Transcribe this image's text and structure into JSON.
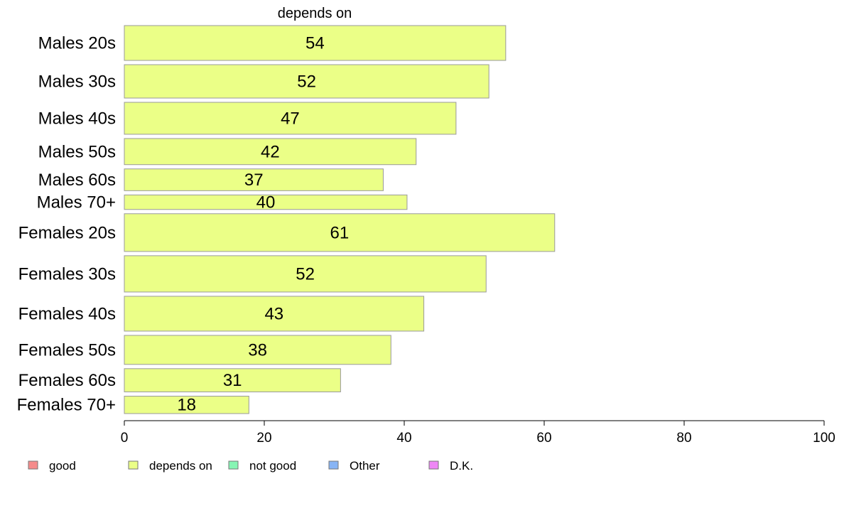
{
  "chart_data": {
    "type": "bar",
    "orientation": "horizontal",
    "title": "depends on",
    "xlabel": "",
    "ylabel": "",
    "xlim": [
      0,
      100
    ],
    "x_ticks": [
      0,
      20,
      40,
      60,
      80,
      100
    ],
    "grid": false,
    "categories": [
      "Males 20s",
      "Males 30s",
      "Males 40s",
      "Males 50s",
      "Males 60s",
      "Males 70+",
      "Females 20s",
      "Females 30s",
      "Females 40s",
      "Females 50s",
      "Females 60s",
      "Females 70+"
    ],
    "category_weights": [
      48,
      46,
      44,
      36,
      30,
      20,
      52,
      50,
      48,
      40,
      32,
      24
    ],
    "series": [
      {
        "name": "depends on",
        "color": "#ebff87",
        "values": [
          54.5,
          52.1,
          47.4,
          41.7,
          37.0,
          40.4,
          61.5,
          51.7,
          42.8,
          38.1,
          30.9,
          17.8
        ],
        "labels": [
          "54",
          "52",
          "47",
          "42",
          "37",
          "40",
          "61",
          "52",
          "43",
          "38",
          "31",
          "18"
        ]
      }
    ],
    "bar_stroke": "#999999",
    "legend": {
      "placement": "bottom-left",
      "items": [
        {
          "name": "good",
          "color": "#f58c8c"
        },
        {
          "name": "depends on",
          "color": "#ebff87"
        },
        {
          "name": "not good",
          "color": "#87f5b4"
        },
        {
          "name": "Other",
          "color": "#87b4f5"
        },
        {
          "name": "D.K.",
          "color": "#ee87f5"
        }
      ]
    }
  }
}
